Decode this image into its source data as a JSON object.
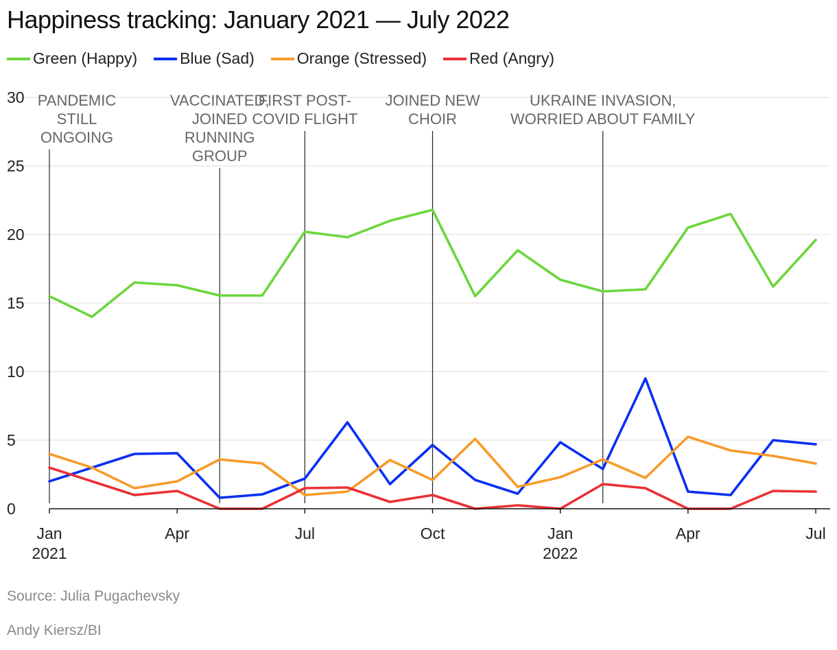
{
  "title": "Happiness tracking: January 2021 — July 2022",
  "legend": [
    {
      "label": "Green (Happy)",
      "color": "#6bd63b"
    },
    {
      "label": "Blue (Sad)",
      "color": "#0a2ff2"
    },
    {
      "label": "Orange (Stressed)",
      "color": "#f79a2a"
    },
    {
      "label": "Red (Angry)",
      "color": "#ea3035"
    }
  ],
  "source": "Source: Julia Pugachevsky",
  "credit": "Andy Kiersz/BI",
  "chart_data": {
    "type": "line",
    "title": "Happiness tracking: January 2021 — July 2022",
    "xlabel": "",
    "ylabel": "",
    "ylim": [
      0,
      30
    ],
    "yticks": [
      "0",
      "5",
      "10",
      "15",
      "20",
      "25",
      "30"
    ],
    "xlim": [
      0,
      18
    ],
    "x_ticks": [
      {
        "x": 0,
        "label": "Jan",
        "sub": "2021"
      },
      {
        "x": 3,
        "label": "Apr",
        "sub": ""
      },
      {
        "x": 6,
        "label": "Jul",
        "sub": ""
      },
      {
        "x": 9,
        "label": "Oct",
        "sub": ""
      },
      {
        "x": 12,
        "label": "Jan",
        "sub": "2022"
      },
      {
        "x": 15,
        "label": "Apr",
        "sub": ""
      },
      {
        "x": 18,
        "label": "Jul",
        "sub": ""
      }
    ],
    "x": [
      0,
      1,
      2,
      3,
      4,
      5,
      6,
      7,
      8,
      9,
      10,
      11,
      12,
      13,
      14,
      15,
      16,
      17,
      18
    ],
    "series": [
      {
        "name": "Green (Happy)",
        "color": "#6bd63b",
        "values": [
          15.5,
          14.0,
          16.5,
          16.3,
          15.55,
          15.55,
          20.2,
          19.8,
          21.0,
          21.8,
          15.5,
          18.85,
          16.7,
          15.85,
          16.0,
          20.5,
          21.5,
          16.2,
          19.6
        ]
      },
      {
        "name": "Blue (Sad)",
        "color": "#0a2ff2",
        "values": [
          2.0,
          3.0,
          4.0,
          4.05,
          0.8,
          1.05,
          2.2,
          6.3,
          1.8,
          4.65,
          2.1,
          1.1,
          4.85,
          2.9,
          9.5,
          1.25,
          1.0,
          5.0,
          4.7
        ]
      },
      {
        "name": "Orange (Stressed)",
        "color": "#f79a2a",
        "values": [
          4.0,
          3.0,
          1.5,
          2.0,
          3.6,
          3.3,
          1.0,
          1.25,
          3.55,
          2.1,
          5.1,
          1.6,
          2.3,
          3.6,
          2.25,
          5.25,
          4.25,
          3.85,
          3.3
        ]
      },
      {
        "name": "Red (Angry)",
        "color": "#ea3035",
        "values": [
          3.0,
          2.0,
          1.0,
          1.3,
          0.0,
          0.0,
          1.5,
          1.55,
          0.5,
          1.0,
          0.0,
          0.25,
          0.0,
          1.8,
          1.5,
          0.0,
          0.0,
          1.3,
          1.25
        ]
      }
    ],
    "annotations": [
      {
        "x": 0,
        "lines": [
          "PANDEMIC",
          "STILL",
          "ONGOING"
        ]
      },
      {
        "x": 4,
        "lines": [
          "VACCINATED,",
          "JOINED",
          "RUNNING",
          "GROUP"
        ]
      },
      {
        "x": 6,
        "lines": [
          "FIRST POST-",
          "COVID FLIGHT"
        ]
      },
      {
        "x": 9,
        "lines": [
          "JOINED NEW",
          "CHOIR"
        ]
      },
      {
        "x": 13,
        "lines": [
          "UKRAINE INVASION,",
          "WORRIED ABOUT FAMILY"
        ]
      }
    ]
  }
}
